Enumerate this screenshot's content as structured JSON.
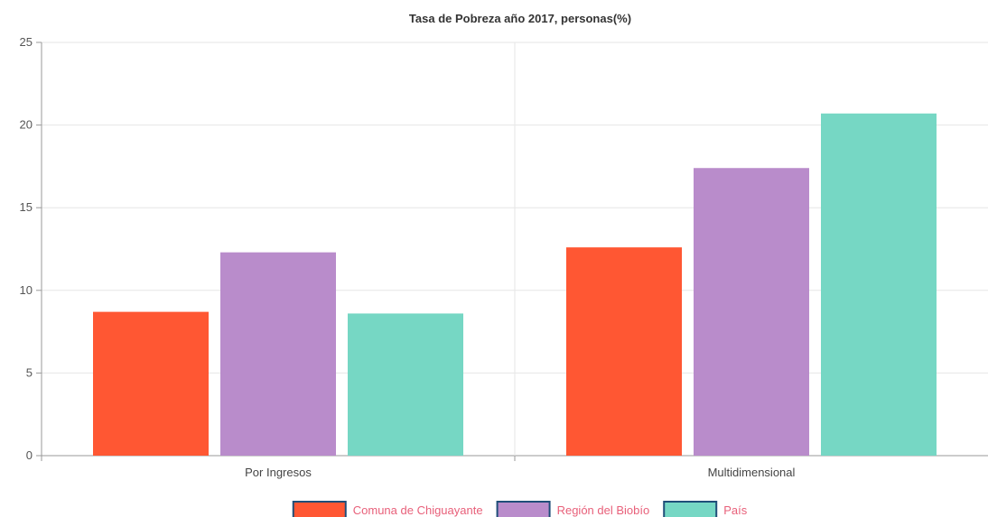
{
  "chart_data": {
    "type": "bar",
    "title": "Tasa de Pobreza año 2017, personas(%)",
    "categories": [
      "Por Ingresos",
      "Multidimensional"
    ],
    "series": [
      {
        "name": "Comuna de Chiguayante",
        "values": [
          8.7,
          12.6
        ],
        "color": "#ff5733"
      },
      {
        "name": "Región del Biobío",
        "values": [
          12.3,
          17.4
        ],
        "color": "#b98ccb"
      },
      {
        "name": "País",
        "values": [
          8.6,
          20.7
        ],
        "color": "#76d7c4"
      }
    ],
    "ylim": [
      0,
      25
    ],
    "yticks": [
      0,
      5,
      10,
      15,
      20,
      25
    ],
    "grid": true,
    "legend_position": "bottom",
    "legend_text_color": "#e8607a",
    "legend_border_color": "#1f4e79"
  }
}
